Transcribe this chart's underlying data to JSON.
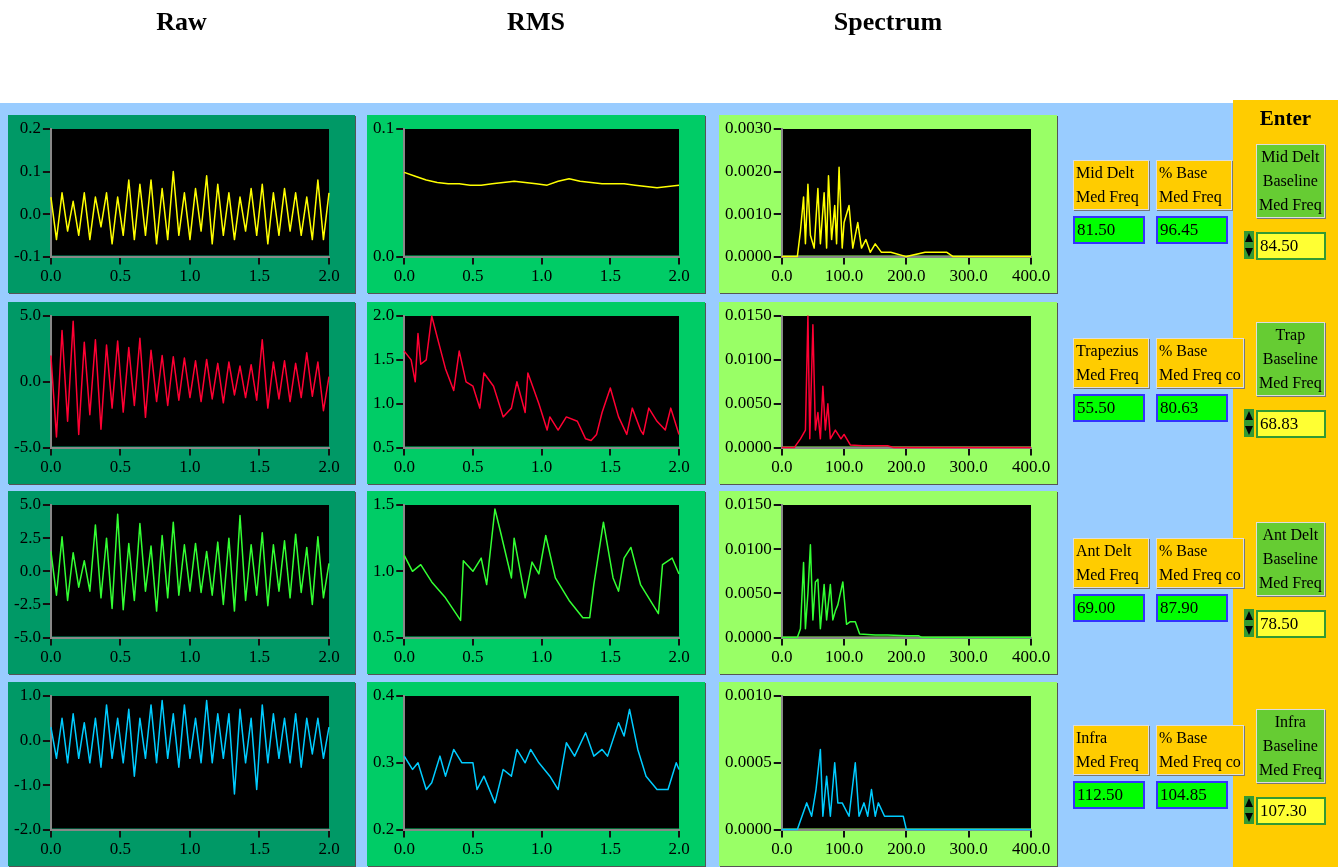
{
  "chart_data": [
    {
      "type": "line",
      "title": "Raw",
      "marker": "none",
      "grid": false,
      "xlim": [
        0,
        2
      ],
      "xticks": [
        {
          "value": 0,
          "label": "0.0"
        },
        {
          "value": 0.5,
          "label": "0.5"
        },
        {
          "value": 1,
          "label": "1.0"
        },
        {
          "value": 1.5,
          "label": "1.5"
        },
        {
          "value": 2,
          "label": "2.0"
        }
      ],
      "ylim": [
        -0.1,
        0.2
      ],
      "yticks": [
        -0.1,
        {
          "value": 0,
          "label": "0.0"
        },
        0.1,
        0.2
      ],
      "x": [
        0,
        0.04,
        0.08,
        0.12,
        0.16,
        0.2,
        0.24,
        0.28,
        0.32,
        0.36,
        0.4,
        0.44,
        0.48,
        0.52,
        0.56,
        0.6,
        0.64,
        0.68,
        0.72,
        0.76,
        0.8,
        0.84,
        0.88,
        0.92,
        0.96,
        1,
        1.04,
        1.08,
        1.12,
        1.16,
        1.2,
        1.24,
        1.28,
        1.32,
        1.36,
        1.4,
        1.44,
        1.48,
        1.52,
        1.56,
        1.6,
        1.64,
        1.68,
        1.72,
        1.76,
        1.8,
        1.84,
        1.88,
        1.92,
        1.96,
        2
      ],
      "series": [
        {
          "color": "#ffff00",
          "values": [
            0.04,
            -0.06,
            0.05,
            -0.04,
            0.03,
            -0.05,
            0.05,
            -0.06,
            0.04,
            -0.03,
            0.05,
            -0.07,
            0.04,
            -0.05,
            0.08,
            -0.06,
            0.07,
            -0.05,
            0.08,
            -0.07,
            0.06,
            -0.06,
            0.1,
            -0.05,
            0.05,
            -0.06,
            0.06,
            -0.04,
            0.09,
            -0.07,
            0.07,
            -0.05,
            0.05,
            -0.06,
            0.04,
            -0.04,
            0.06,
            -0.05,
            0.07,
            -0.07,
            0.05,
            -0.05,
            0.06,
            -0.04,
            0.05,
            -0.05,
            0.04,
            -0.06,
            0.08,
            -0.06,
            0.05
          ]
        }
      ]
    },
    {
      "type": "line",
      "title": "RMS",
      "marker": "none",
      "grid": false,
      "xlim": [
        0,
        2
      ],
      "xticks": [
        {
          "value": 0,
          "label": "0.0"
        },
        {
          "value": 0.5,
          "label": "0.5"
        },
        {
          "value": 1,
          "label": "1.0"
        },
        {
          "value": 1.5,
          "label": "1.5"
        },
        {
          "value": 2,
          "label": "2.0"
        }
      ],
      "ylim": [
        0,
        0.1
      ],
      "yticks": [
        {
          "value": 0,
          "label": "0.0"
        },
        0.1
      ],
      "x": [
        0,
        0.08,
        0.16,
        0.24,
        0.32,
        0.4,
        0.48,
        0.56,
        0.64,
        0.72,
        0.8,
        0.88,
        0.96,
        1.04,
        1.12,
        1.2,
        1.28,
        1.36,
        1.44,
        1.52,
        1.6,
        1.68,
        1.76,
        1.84,
        1.92,
        2
      ],
      "series": [
        {
          "color": "#ffff00",
          "values": [
            0.066,
            0.063,
            0.06,
            0.058,
            0.057,
            0.057,
            0.056,
            0.056,
            0.057,
            0.058,
            0.059,
            0.058,
            0.057,
            0.056,
            0.059,
            0.061,
            0.059,
            0.058,
            0.057,
            0.057,
            0.057,
            0.056,
            0.055,
            0.054,
            0.055,
            0.056
          ]
        }
      ]
    },
    {
      "type": "line",
      "title": "Spectrum",
      "marker": "none",
      "grid": false,
      "xlim": [
        0,
        400
      ],
      "xticks": [
        {
          "value": 0,
          "label": "0.0"
        },
        {
          "value": 100,
          "label": "100.0"
        },
        {
          "value": 200,
          "label": "200.0"
        },
        {
          "value": 300,
          "label": "300.0"
        },
        {
          "value": 400,
          "label": "400.0"
        }
      ],
      "ylim": [
        0,
        0.003
      ],
      "yticks": [
        {
          "value": 0,
          "label": "0.0000"
        },
        {
          "value": 0.001,
          "label": "0.0010"
        },
        {
          "value": 0.002,
          "label": "0.0020"
        },
        {
          "value": 0.003,
          "label": "0.0030"
        }
      ],
      "x": [
        0,
        25,
        30,
        35,
        38,
        42,
        46,
        52,
        58,
        62,
        68,
        72,
        75,
        80,
        85,
        88,
        92,
        97,
        100,
        108,
        114,
        122,
        128,
        135,
        142,
        150,
        160,
        175,
        200,
        230,
        265,
        275,
        400
      ],
      "series": [
        {
          "color": "#ffff00",
          "values": [
            0,
            0,
            0.0006,
            0.0014,
            0.0003,
            0.0017,
            0.0005,
            0.0002,
            0.0016,
            0.0003,
            0.0015,
            0.0002,
            0.0019,
            0.0004,
            0.0012,
            0.0003,
            0.0021,
            0.0002,
            0.0008,
            0.0012,
            0.0002,
            0.0008,
            0.0002,
            0.0004,
            0.0001,
            0.0003,
            0.0001,
            0.0001,
            0,
            0.0001,
            0.0001,
            0,
            0
          ]
        }
      ]
    },
    {
      "type": "line",
      "marker": "none",
      "grid": false,
      "xlim": [
        0,
        2
      ],
      "xticks": [
        {
          "value": 0,
          "label": "0.0"
        },
        {
          "value": 0.5,
          "label": "0.5"
        },
        {
          "value": 1,
          "label": "1.0"
        },
        {
          "value": 1.5,
          "label": "1.5"
        },
        {
          "value": 2,
          "label": "2.0"
        }
      ],
      "ylim": [
        -5,
        5
      ],
      "yticks": [
        {
          "value": -5,
          "label": "-5.0"
        },
        {
          "value": 0,
          "label": "0.0"
        },
        {
          "value": 5,
          "label": "5.0"
        }
      ],
      "x": [
        0,
        0.04,
        0.08,
        0.12,
        0.16,
        0.2,
        0.24,
        0.28,
        0.32,
        0.36,
        0.4,
        0.44,
        0.48,
        0.52,
        0.56,
        0.6,
        0.64,
        0.68,
        0.72,
        0.76,
        0.8,
        0.84,
        0.88,
        0.92,
        0.96,
        1,
        1.04,
        1.08,
        1.12,
        1.16,
        1.2,
        1.24,
        1.28,
        1.32,
        1.36,
        1.4,
        1.44,
        1.48,
        1.52,
        1.56,
        1.6,
        1.64,
        1.68,
        1.72,
        1.76,
        1.8,
        1.84,
        1.88,
        1.92,
        1.96,
        2
      ],
      "series": [
        {
          "color": "#ff0033",
          "values": [
            2,
            -4.2,
            3.9,
            -3,
            4.6,
            -4,
            3,
            -2.5,
            3.2,
            -3.6,
            2.8,
            -2,
            3.1,
            -2.3,
            2.6,
            -1.8,
            3.3,
            -2.7,
            2.4,
            -1.5,
            2,
            -1.8,
            1.9,
            -1.4,
            1.8,
            -1.2,
            1.6,
            -1.5,
            1.7,
            -1.3,
            1.4,
            -1.6,
            1.5,
            -1,
            1.2,
            -1.2,
            1.3,
            -1.4,
            3.2,
            -2,
            1.5,
            -1.3,
            1.6,
            -1.5,
            1.4,
            -1.2,
            2.2,
            -1.1,
            1.5,
            -2.2,
            0.4
          ]
        }
      ]
    },
    {
      "type": "line",
      "marker": "none",
      "grid": false,
      "xlim": [
        0,
        2
      ],
      "xticks": [
        {
          "value": 0,
          "label": "0.0"
        },
        {
          "value": 0.5,
          "label": "0.5"
        },
        {
          "value": 1,
          "label": "1.0"
        },
        {
          "value": 1.5,
          "label": "1.5"
        },
        {
          "value": 2,
          "label": "2.0"
        }
      ],
      "ylim": [
        0.5,
        2
      ],
      "yticks": [
        0.5,
        {
          "value": 1,
          "label": "1.0"
        },
        1.5,
        {
          "value": 2,
          "label": "2.0"
        }
      ],
      "x": [
        0,
        0.05,
        0.08,
        0.1,
        0.12,
        0.16,
        0.2,
        0.25,
        0.3,
        0.36,
        0.4,
        0.45,
        0.5,
        0.55,
        0.58,
        0.65,
        0.72,
        0.78,
        0.82,
        0.88,
        0.9,
        0.98,
        1.04,
        1.06,
        1.12,
        1.18,
        1.26,
        1.32,
        1.36,
        1.4,
        1.44,
        1.5,
        1.56,
        1.62,
        1.66,
        1.72,
        1.74,
        1.78,
        1.84,
        1.9,
        1.94,
        2
      ],
      "series": [
        {
          "color": "#ff0033",
          "values": [
            1.6,
            1.5,
            1.25,
            1.8,
            1.45,
            1.5,
            2,
            1.7,
            1.4,
            1.15,
            1.6,
            1.25,
            1.2,
            0.95,
            1.35,
            1.2,
            0.85,
            0.95,
            1.25,
            0.9,
            1.35,
            1,
            0.7,
            0.85,
            0.7,
            0.85,
            0.8,
            0.6,
            0.58,
            0.65,
            0.9,
            1.18,
            0.85,
            0.65,
            0.95,
            0.7,
            0.65,
            0.95,
            0.8,
            0.7,
            0.95,
            0.65
          ]
        }
      ]
    },
    {
      "type": "line",
      "marker": "none",
      "grid": false,
      "xlim": [
        0,
        400
      ],
      "xticks": [
        {
          "value": 0,
          "label": "0.0"
        },
        {
          "value": 100,
          "label": "100.0"
        },
        {
          "value": 200,
          "label": "200.0"
        },
        {
          "value": 300,
          "label": "300.0"
        },
        {
          "value": 400,
          "label": "400.0"
        }
      ],
      "ylim": [
        0,
        0.015
      ],
      "yticks": [
        {
          "value": 0,
          "label": "0.0000"
        },
        {
          "value": 0.005,
          "label": "0.0050"
        },
        {
          "value": 0.01,
          "label": "0.0100"
        },
        {
          "value": 0.015,
          "label": "0.0150"
        }
      ],
      "x": [
        0,
        20,
        30,
        38,
        42,
        45,
        50,
        54,
        58,
        62,
        66,
        70,
        74,
        78,
        86,
        95,
        100,
        110,
        130,
        170,
        180,
        400
      ],
      "series": [
        {
          "color": "#ff0033",
          "values": [
            0,
            0,
            0.001,
            0.002,
            0.015,
            0.001,
            0.014,
            0.002,
            0.004,
            0.001,
            0.007,
            0.002,
            0.005,
            0.001,
            0.002,
            0.001,
            0.0015,
            0.0003,
            0.0002,
            0.0002,
            0,
            0
          ]
        }
      ]
    },
    {
      "type": "line",
      "marker": "none",
      "grid": false,
      "xlim": [
        0,
        2
      ],
      "xticks": [
        {
          "value": 0,
          "label": "0.0"
        },
        {
          "value": 0.5,
          "label": "0.5"
        },
        {
          "value": 1,
          "label": "1.0"
        },
        {
          "value": 1.5,
          "label": "1.5"
        },
        {
          "value": 2,
          "label": "2.0"
        }
      ],
      "ylim": [
        -5,
        5
      ],
      "yticks": [
        {
          "value": -5,
          "label": "-5.0"
        },
        -2.5,
        {
          "value": 0,
          "label": "0.0"
        },
        2.5,
        {
          "value": 5,
          "label": "5.0"
        }
      ],
      "x": [
        0,
        0.04,
        0.08,
        0.12,
        0.16,
        0.2,
        0.24,
        0.28,
        0.32,
        0.36,
        0.4,
        0.44,
        0.48,
        0.52,
        0.56,
        0.6,
        0.64,
        0.68,
        0.72,
        0.76,
        0.8,
        0.84,
        0.88,
        0.92,
        0.96,
        1,
        1.04,
        1.08,
        1.12,
        1.16,
        1.2,
        1.24,
        1.28,
        1.32,
        1.36,
        1.4,
        1.44,
        1.48,
        1.52,
        1.56,
        1.6,
        1.64,
        1.68,
        1.72,
        1.76,
        1.8,
        1.84,
        1.88,
        1.92,
        1.96,
        2
      ],
      "series": [
        {
          "color": "#33ff33",
          "values": [
            1.5,
            -1.8,
            2.6,
            -2.2,
            1.4,
            -1.2,
            0.8,
            -1.5,
            3.5,
            -2,
            2.5,
            -2.8,
            4.3,
            -2.9,
            2.1,
            -2.2,
            3.6,
            -1.5,
            1.9,
            -3,
            2.7,
            -2,
            3.7,
            -1.8,
            2,
            -1.5,
            2.1,
            -1.6,
            1.5,
            -1.8,
            2.2,
            -2.5,
            2.5,
            -3,
            4.2,
            -2.2,
            2,
            -1.8,
            2.9,
            -2.6,
            2,
            -1.5,
            2.3,
            -2,
            2.8,
            -1.6,
            1.8,
            -2.5,
            2.6,
            -2,
            0.6
          ]
        }
      ]
    },
    {
      "type": "line",
      "marker": "none",
      "grid": false,
      "xlim": [
        0,
        2
      ],
      "xticks": [
        {
          "value": 0,
          "label": "0.0"
        },
        {
          "value": 0.5,
          "label": "0.5"
        },
        {
          "value": 1,
          "label": "1.0"
        },
        {
          "value": 1.5,
          "label": "1.5"
        },
        {
          "value": 2,
          "label": "2.0"
        }
      ],
      "ylim": [
        0.5,
        1.5
      ],
      "yticks": [
        0.5,
        {
          "value": 1,
          "label": "1.0"
        },
        1.5
      ],
      "x": [
        0,
        0.06,
        0.12,
        0.2,
        0.3,
        0.41,
        0.43,
        0.5,
        0.56,
        0.6,
        0.66,
        0.7,
        0.78,
        0.8,
        0.88,
        0.93,
        0.98,
        1.03,
        1.1,
        1.2,
        1.3,
        1.35,
        1.38,
        1.45,
        1.52,
        1.56,
        1.6,
        1.65,
        1.72,
        1.85,
        1.88,
        1.95,
        2
      ],
      "series": [
        {
          "color": "#33ff33",
          "values": [
            1.12,
            1,
            1.05,
            0.92,
            0.8,
            0.63,
            1.08,
            1,
            1.1,
            0.9,
            1.47,
            1.3,
            0.95,
            1.25,
            0.8,
            1.07,
            0.98,
            1.27,
            0.95,
            0.78,
            0.65,
            0.65,
            0.9,
            1.37,
            0.95,
            0.85,
            1.1,
            1.18,
            0.9,
            0.68,
            1.05,
            1.1,
            0.98
          ]
        }
      ]
    },
    {
      "type": "line",
      "marker": "none",
      "grid": false,
      "xlim": [
        0,
        400
      ],
      "xticks": [
        {
          "value": 0,
          "label": "0.0"
        },
        {
          "value": 100,
          "label": "100.0"
        },
        {
          "value": 200,
          "label": "200.0"
        },
        {
          "value": 300,
          "label": "300.0"
        },
        {
          "value": 400,
          "label": "400.0"
        }
      ],
      "ylim": [
        0,
        0.015
      ],
      "yticks": [
        {
          "value": 0,
          "label": "0.0000"
        },
        {
          "value": 0.005,
          "label": "0.0050"
        },
        {
          "value": 0.01,
          "label": "0.0100"
        },
        {
          "value": 0.015,
          "label": "0.0150"
        }
      ],
      "x": [
        0,
        25,
        30,
        35,
        38,
        42,
        46,
        50,
        54,
        58,
        62,
        68,
        72,
        78,
        82,
        86,
        90,
        98,
        104,
        110,
        118,
        125,
        150,
        170,
        200,
        220,
        225,
        400
      ],
      "series": [
        {
          "color": "#33ff33",
          "values": [
            0,
            0,
            0.001,
            0.0085,
            0.001,
            0.005,
            0.0105,
            0.002,
            0.0063,
            0.0066,
            0.001,
            0.006,
            0.002,
            0.006,
            0.002,
            0.003,
            0.0037,
            0.0063,
            0.0015,
            0.0018,
            0.0018,
            0.0004,
            0.0003,
            0.0003,
            0.0002,
            0.0002,
            0,
            0
          ]
        }
      ]
    },
    {
      "type": "line",
      "marker": "none",
      "grid": false,
      "xlim": [
        0,
        2
      ],
      "xticks": [
        {
          "value": 0,
          "label": "0.0"
        },
        {
          "value": 0.5,
          "label": "0.5"
        },
        {
          "value": 1,
          "label": "1.0"
        },
        {
          "value": 1.5,
          "label": "1.5"
        },
        {
          "value": 2,
          "label": "2.0"
        }
      ],
      "ylim": [
        -2,
        1
      ],
      "yticks": [
        {
          "value": -2,
          "label": "-2.0"
        },
        {
          "value": -1,
          "label": "-1.0"
        },
        {
          "value": 0,
          "label": "0.0"
        },
        {
          "value": 1,
          "label": "1.0"
        }
      ],
      "x": [
        0,
        0.04,
        0.08,
        0.12,
        0.16,
        0.2,
        0.24,
        0.28,
        0.32,
        0.36,
        0.4,
        0.44,
        0.48,
        0.52,
        0.56,
        0.6,
        0.64,
        0.68,
        0.72,
        0.76,
        0.8,
        0.84,
        0.88,
        0.92,
        0.96,
        1,
        1.04,
        1.08,
        1.12,
        1.16,
        1.2,
        1.24,
        1.28,
        1.32,
        1.36,
        1.4,
        1.44,
        1.48,
        1.52,
        1.56,
        1.6,
        1.64,
        1.68,
        1.72,
        1.76,
        1.8,
        1.84,
        1.88,
        1.92,
        1.96,
        2
      ],
      "series": [
        {
          "color": "#00ccff",
          "values": [
            0.3,
            -0.4,
            0.5,
            -0.5,
            0.6,
            -0.4,
            0.4,
            -0.5,
            0.5,
            -0.6,
            0.8,
            -0.4,
            0.5,
            -0.5,
            0.7,
            -0.8,
            0.5,
            -0.4,
            0.8,
            -0.5,
            0.9,
            -0.4,
            0.6,
            -0.6,
            0.8,
            -0.4,
            0.5,
            -0.5,
            0.9,
            -0.5,
            0.6,
            -0.4,
            0.6,
            -1.2,
            0.7,
            -0.5,
            0.5,
            -1.1,
            0.8,
            -0.5,
            0.6,
            -0.4,
            0.5,
            -0.5,
            0.6,
            -0.6,
            0.5,
            -0.3,
            0.5,
            -0.4,
            0.3
          ]
        }
      ]
    },
    {
      "type": "line",
      "marker": "none",
      "grid": false,
      "xlim": [
        0,
        2
      ],
      "xticks": [
        {
          "value": 0,
          "label": "0.0"
        },
        {
          "value": 0.5,
          "label": "0.5"
        },
        {
          "value": 1,
          "label": "1.0"
        },
        {
          "value": 1.5,
          "label": "1.5"
        },
        {
          "value": 2,
          "label": "2.0"
        }
      ],
      "ylim": [
        0.2,
        0.4
      ],
      "yticks": [
        0.2,
        0.3,
        0.4
      ],
      "x": [
        0,
        0.06,
        0.1,
        0.16,
        0.2,
        0.26,
        0.3,
        0.36,
        0.42,
        0.5,
        0.53,
        0.58,
        0.66,
        0.72,
        0.78,
        0.82,
        0.88,
        0.92,
        0.98,
        1.06,
        1.12,
        1.18,
        1.24,
        1.32,
        1.38,
        1.44,
        1.48,
        1.56,
        1.6,
        1.64,
        1.7,
        1.76,
        1.84,
        1.92,
        1.98,
        2
      ],
      "series": [
        {
          "color": "#00ccff",
          "values": [
            0.31,
            0.29,
            0.3,
            0.26,
            0.27,
            0.31,
            0.28,
            0.32,
            0.3,
            0.3,
            0.26,
            0.28,
            0.24,
            0.29,
            0.28,
            0.32,
            0.3,
            0.32,
            0.3,
            0.28,
            0.26,
            0.33,
            0.31,
            0.345,
            0.31,
            0.32,
            0.31,
            0.36,
            0.34,
            0.38,
            0.32,
            0.28,
            0.26,
            0.26,
            0.3,
            0.29
          ]
        }
      ]
    },
    {
      "type": "line",
      "marker": "none",
      "grid": false,
      "xlim": [
        0,
        400
      ],
      "xticks": [
        {
          "value": 0,
          "label": "0.0"
        },
        {
          "value": 100,
          "label": "100.0"
        },
        {
          "value": 200,
          "label": "200.0"
        },
        {
          "value": 300,
          "label": "300.0"
        },
        {
          "value": 400,
          "label": "400.0"
        }
      ],
      "ylim": [
        0,
        0.001
      ],
      "yticks": [
        {
          "value": 0,
          "label": "0.0000"
        },
        {
          "value": 0.0005,
          "label": "0.0005"
        },
        {
          "value": 0.001,
          "label": "0.0010"
        }
      ],
      "x": [
        0,
        25,
        40,
        48,
        55,
        62,
        66,
        72,
        78,
        85,
        90,
        97,
        108,
        118,
        124,
        132,
        138,
        144,
        150,
        155,
        165,
        175,
        195,
        200,
        250,
        300,
        350,
        400
      ],
      "series": [
        {
          "color": "#00ccff",
          "values": [
            0,
            0,
            0.0002,
            0.0001,
            0.0003,
            0.0006,
            0.0001,
            0.0004,
            0.0001,
            0.0005,
            0.0002,
            0.0002,
            0.0001,
            0.0005,
            0.0001,
            0.0002,
            0.0001,
            0.0003,
            0.0001,
            0.0002,
            0.0001,
            0.0001,
            0.0001,
            0,
            0,
            0,
            0,
            0
          ]
        }
      ]
    },
    {
      "type": "other",
      "title": "Enter",
      "annotations": [
        "Mid Delt\nMed Freq",
        "81.50",
        "% Base\nMed Freq",
        "96.45",
        "Mid Delt\nBaseline\nMed Freq",
        "84.50",
        "Trapezius\nMed Freq",
        "55.50",
        "% Base\nMed Freq co",
        "80.63",
        "Trap\nBaseline\nMed Freq",
        "68.83",
        "Ant Delt\nMed Freq",
        "69.00",
        "% Base\nMed Freq co",
        "87.90",
        "Ant Delt\nBaseline\nMed Freq",
        "78.50",
        "Infra\nMed Freq",
        "112.50",
        "% Base\nMed Freq co",
        "104.85",
        "Infra\nBaseline\nMed Freq",
        "107.30"
      ]
    }
  ]
}
